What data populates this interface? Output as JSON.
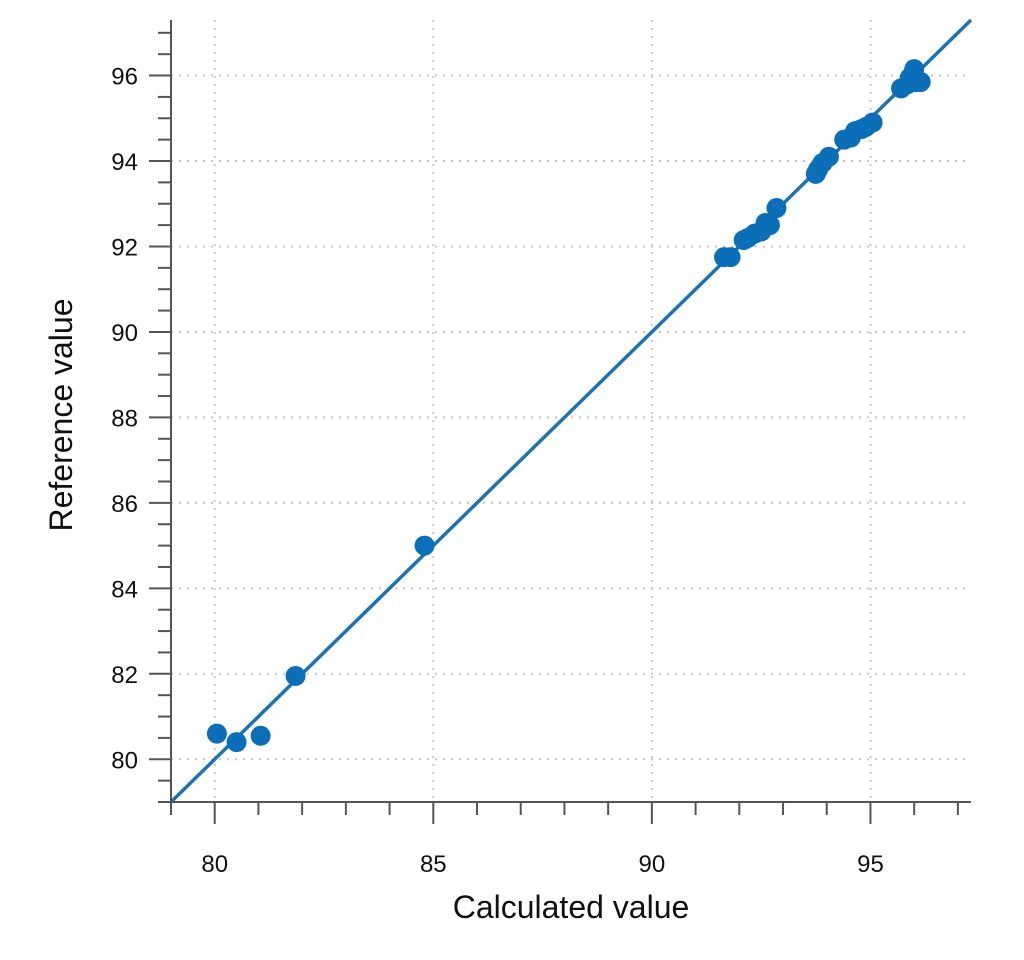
{
  "chart_data": {
    "type": "scatter",
    "xlabel": "Calculated value",
    "ylabel": "Reference value",
    "xlim": [
      79,
      97.3
    ],
    "ylim": [
      79,
      97.3
    ],
    "x_ticks": [
      80,
      85,
      90,
      95
    ],
    "y_ticks": [
      80,
      82,
      84,
      86,
      88,
      90,
      92,
      94,
      96
    ],
    "x_minor_step": 1,
    "y_minor_step": 0.5,
    "grid": true,
    "grid_style": "dotted",
    "colors": {
      "points": "#0a6eb8",
      "line": "#1a73b8",
      "grid": "#c8c8c8",
      "axis": "#555555"
    },
    "fit_line": {
      "x": [
        79,
        97.3
      ],
      "y": [
        79,
        97.3
      ]
    },
    "series": [
      {
        "points": [
          [
            80.05,
            80.6
          ],
          [
            80.5,
            80.4
          ],
          [
            81.05,
            80.55
          ],
          [
            81.85,
            81.95
          ],
          [
            84.8,
            85.0
          ],
          [
            91.65,
            91.75
          ],
          [
            91.8,
            91.75
          ],
          [
            92.1,
            92.15
          ],
          [
            92.2,
            92.2
          ],
          [
            92.35,
            92.3
          ],
          [
            92.5,
            92.35
          ],
          [
            92.6,
            92.55
          ],
          [
            92.7,
            92.5
          ],
          [
            92.85,
            92.9
          ],
          [
            93.75,
            93.7
          ],
          [
            93.8,
            93.8
          ],
          [
            93.9,
            93.95
          ],
          [
            94.05,
            94.1
          ],
          [
            94.4,
            94.5
          ],
          [
            94.55,
            94.55
          ],
          [
            94.65,
            94.7
          ],
          [
            94.8,
            94.75
          ],
          [
            94.9,
            94.8
          ],
          [
            95.05,
            94.9
          ],
          [
            95.7,
            95.7
          ],
          [
            95.85,
            95.8
          ],
          [
            95.9,
            95.95
          ],
          [
            96.0,
            96.15
          ],
          [
            96.05,
            95.85
          ],
          [
            96.15,
            95.85
          ]
        ]
      }
    ]
  }
}
